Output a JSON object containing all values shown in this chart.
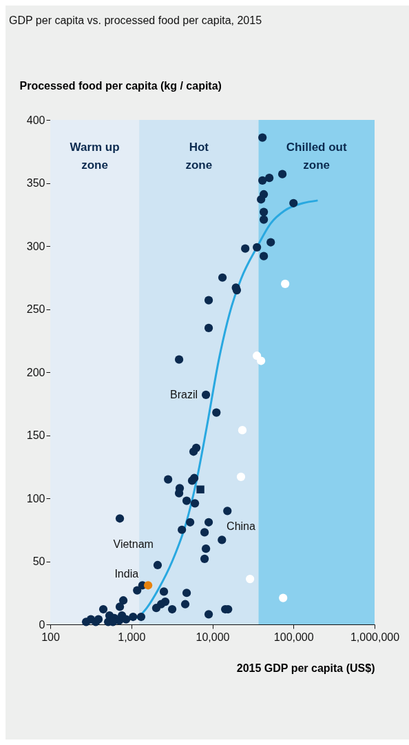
{
  "chart_data": {
    "type": "scatter",
    "title": "GDP per capita vs. processed food per capita, 2015",
    "xlabel": "2015 GDP per capita (US$)",
    "ylabel": "Processed food per capita (kg / capita)",
    "log": "x",
    "xlim": [
      100,
      1000000
    ],
    "xticks": [
      {
        "value": 100,
        "label": "100"
      },
      {
        "value": 1000,
        "label": "1,000"
      },
      {
        "value": 10000,
        "label": "10,000"
      },
      {
        "value": 100000,
        "label": "100,000"
      },
      {
        "value": 1000000,
        "label": "1,000,000"
      }
    ],
    "ylim": [
      0,
      400
    ],
    "yticks": [
      0,
      50,
      100,
      150,
      200,
      250,
      300,
      350,
      400
    ],
    "grid": false,
    "bands": [
      {
        "axis": "x",
        "from": 100,
        "to": 1250,
        "label": "Warm up zone",
        "color": "#e4edf6"
      },
      {
        "axis": "x",
        "from": 1250,
        "to": 37000,
        "label": "Hot zone",
        "color": "#cfe4f3"
      },
      {
        "axis": "x",
        "from": 37000,
        "to": 1000000,
        "label": "Chilled out zone",
        "color": "#8bd0ee"
      }
    ],
    "series": [
      {
        "color": "#0b2a4f",
        "marker": "circle",
        "x": [
          41400,
          72900,
          50300,
          41400,
          43000,
          39800,
          100000,
          43000,
          43000,
          52400,
          35400,
          25400,
          43000,
          13300,
          19500,
          20000,
          8990,
          8990,
          3880,
          8320,
          11200,
          6320,
          5850,
          2840,
          5970,
          5620,
          3950,
          3880,
          4810,
          6080,
          721,
          15300,
          5310,
          8990,
          4200,
          8000,
          13100,
          8320,
          8000,
          2110,
          1370,
          1180,
          2520,
          4810,
          796,
          721,
          451,
          2620,
          2330,
          2030,
          3190,
          4620,
          8990,
          14400,
          15600,
          1320,
          1050,
          277,
          317,
          364,
          393,
          538,
          518,
          617,
          708,
          766,
          861,
          593
        ],
        "values": [
          386,
          357,
          354,
          352,
          341,
          337,
          334,
          327,
          321,
          303,
          299,
          298,
          292,
          275,
          267,
          265,
          257,
          235,
          210,
          182,
          168,
          140,
          137,
          115,
          116,
          114,
          108,
          104,
          98,
          96,
          84,
          90,
          81,
          81,
          75,
          73,
          67,
          60,
          52,
          47,
          31,
          27,
          26,
          25,
          19,
          14,
          12,
          18,
          16,
          13,
          12,
          16,
          8,
          12,
          12,
          6,
          6,
          2,
          4,
          2,
          4,
          7,
          2,
          5,
          3,
          7,
          4,
          2
        ]
      },
      {
        "color": "#ffffff",
        "marker": "circle",
        "x": [
          78900,
          35400,
          39800,
          23400,
          22500,
          29100,
          74500
        ],
        "values": [
          270,
          213,
          209,
          154,
          117,
          36,
          21
        ]
      },
      {
        "color": "#e8820c",
        "marker": "circle",
        "x": [
          1610
        ],
        "values": [
          31
        ]
      },
      {
        "color": "#0b2a4f",
        "marker": "square",
        "x": [
          7110
        ],
        "values": [
          107
        ]
      },
      {
        "type": "line",
        "color": "#29a8e0",
        "x": [
          1200,
          1550,
          2160,
          3190,
          4720,
          6320,
          8490,
          12100,
          16200,
          22600,
          35400,
          52400,
          77400,
          131000,
          194000
        ],
        "values": [
          5,
          13,
          28,
          50,
          80,
          113,
          156,
          211,
          246,
          274,
          299,
          318,
          328,
          334,
          336
        ]
      }
    ],
    "annotations": [
      {
        "text": "Brazil",
        "x": 8320,
        "y": 182
      },
      {
        "text": "China",
        "x": 8000,
        "y": 73
      },
      {
        "text": "Vietnam",
        "x": 2110,
        "y": 47
      },
      {
        "text": "India",
        "x": 1610,
        "y": 31
      }
    ]
  }
}
